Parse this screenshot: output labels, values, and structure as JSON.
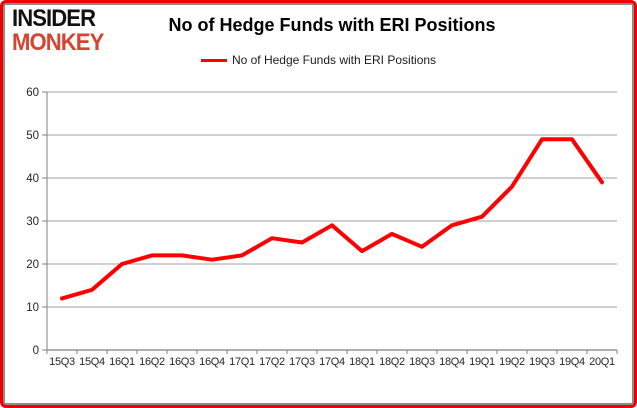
{
  "logo": {
    "line1": "INSIDER",
    "line2": "MONKEY"
  },
  "title": "No of Hedge Funds with ERI Positions",
  "legend": {
    "label": "No of Hedge Funds with ERI Positions"
  },
  "colors": {
    "series": "#ff0000",
    "logo_black": "#111111",
    "logo_red": "#d8432f",
    "grid": "#a0a0a0",
    "axis": "#808080",
    "tick_text": "#262626",
    "outer_border": "#f20000",
    "inner_border": "#8c8c8c",
    "background": "#ffffff"
  },
  "chart_data": {
    "type": "line",
    "title": "No of Hedge Funds with ERI Positions",
    "categories": [
      "15Q3",
      "15Q4",
      "16Q1",
      "16Q2",
      "16Q3",
      "16Q4",
      "17Q1",
      "17Q2",
      "17Q3",
      "17Q4",
      "18Q1",
      "18Q2",
      "18Q3",
      "18Q4",
      "19Q1",
      "19Q2",
      "19Q3",
      "19Q4",
      "20Q1"
    ],
    "series": [
      {
        "name": "No of Hedge Funds with ERI Positions",
        "color": "#ff0000",
        "values": [
          12,
          14,
          20,
          22,
          22,
          21,
          22,
          26,
          25,
          29,
          23,
          27,
          24,
          29,
          31,
          38,
          49,
          49,
          39
        ]
      }
    ],
    "xlabel": "",
    "ylabel": "",
    "ylim": [
      0,
      60
    ],
    "yticks": [
      0,
      10,
      20,
      30,
      40,
      50,
      60
    ],
    "grid": "horizontal",
    "legend_position": "top-center"
  }
}
